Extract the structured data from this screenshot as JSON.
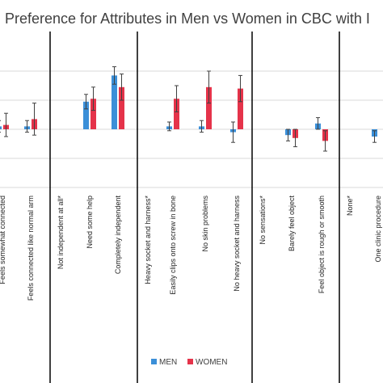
{
  "chart_data": {
    "type": "bar",
    "title": "Preference for Attributes in Men vs Women in CBC with I",
    "ylim": [
      -0.1,
      0.27
    ],
    "grid": true,
    "legend_position": "bottom-center",
    "colors": {
      "MEN": "#3b8fd8",
      "WOMEN": "#e5334a",
      "grid": "#d9d9d9",
      "divider": "#000000"
    },
    "series": [
      {
        "name": "MEN"
      },
      {
        "name": "WOMEN"
      }
    ],
    "groups": [
      {
        "categories": [
          {
            "label": "Feels somewhat connected",
            "men": 0.002,
            "men_err": 0.004,
            "women": 0.003,
            "women_err": 0.008
          },
          {
            "label": "Feels connected like normal arm",
            "men": 0.002,
            "men_err": 0.004,
            "women": 0.007,
            "women_err": 0.011
          }
        ]
      },
      {
        "categories": [
          {
            "label": "Not independent at all*",
            "men": null,
            "men_err": null,
            "women": null,
            "women_err": null
          },
          {
            "label": "Need some help",
            "men": 0.019,
            "men_err": 0.005,
            "women": 0.021,
            "women_err": 0.008
          },
          {
            "label": "Completely independent",
            "men": 0.037,
            "men_err": 0.006,
            "women": 0.029,
            "women_err": 0.009
          }
        ]
      },
      {
        "categories": [
          {
            "label": "Heavy socket and harness*",
            "men": null,
            "men_err": null,
            "women": null,
            "women_err": null
          },
          {
            "label": "Easily clips onto screw in bone",
            "men": 0.002,
            "men_err": 0.003,
            "women": 0.021,
            "women_err": 0.009
          },
          {
            "label": "No skin problems",
            "men": 0.002,
            "men_err": 0.004,
            "women": 0.029,
            "women_err": 0.011
          },
          {
            "label": "No heavy socket and harness",
            "men": -0.002,
            "men_err": 0.007,
            "women": 0.028,
            "women_err": 0.009
          }
        ]
      },
      {
        "categories": [
          {
            "label": "No sensations*",
            "men": null,
            "men_err": null,
            "women": null,
            "women_err": null
          },
          {
            "label": "Barely feel object",
            "men": -0.004,
            "men_err": 0.004,
            "women": -0.006,
            "women_err": 0.006
          },
          {
            "label": "Feel object is rough or smooth",
            "men": 0.004,
            "men_err": 0.004,
            "women": -0.008,
            "women_err": 0.007
          }
        ]
      },
      {
        "categories": [
          {
            "label": "None*",
            "men": null,
            "men_err": null,
            "women": null,
            "women_err": null
          },
          {
            "label": "One clinic procedure",
            "men": -0.005,
            "men_err": 0.004,
            "women": null,
            "women_err": null
          }
        ]
      }
    ]
  }
}
